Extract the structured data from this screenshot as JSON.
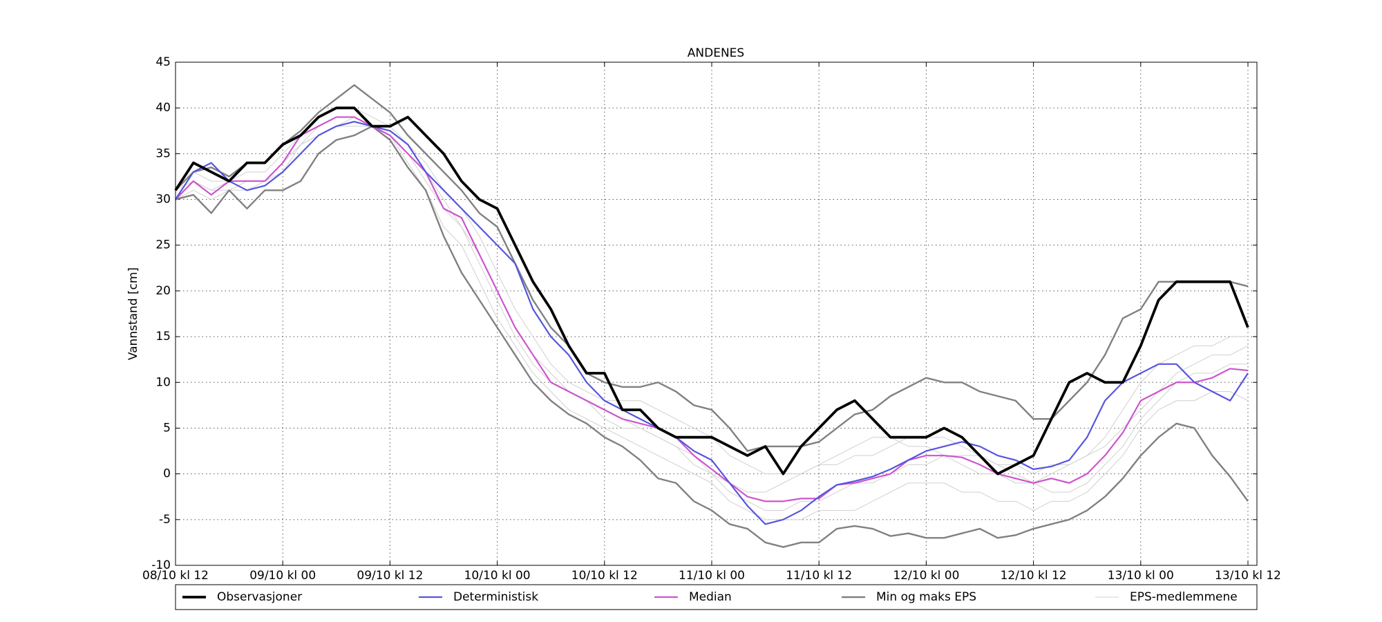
{
  "chart_data": {
    "type": "line",
    "title": "ANDENES",
    "y_label": "Vannstand [cm]",
    "categories": [
      "08/10 kl 12",
      null,
      null,
      null,
      null,
      null,
      "09/10 kl 00",
      null,
      null,
      null,
      null,
      null,
      "09/10 kl 12",
      null,
      null,
      null,
      null,
      null,
      "10/10 kl 00",
      null,
      null,
      null,
      null,
      null,
      "10/10 kl 12",
      null,
      null,
      null,
      null,
      null,
      "11/10 kl 00",
      null,
      null,
      null,
      null,
      null,
      "11/10 kl 12",
      null,
      null,
      null,
      null,
      null,
      "12/10 kl 00",
      null,
      null,
      null,
      null,
      null,
      "12/10 kl 12",
      null,
      null,
      null,
      null,
      null,
      "13/10 kl 00",
      null,
      null,
      null,
      null,
      null,
      "13/10 kl 12"
    ],
    "ylim": [
      -10,
      45
    ],
    "yticks": [
      -10,
      -5,
      0,
      5,
      10,
      15,
      20,
      25,
      30,
      35,
      40,
      45
    ],
    "grid": true,
    "series": [
      {
        "name": "Observasjoner",
        "color": "#000000",
        "values": [
          31,
          34,
          33,
          32,
          34,
          34,
          36,
          37,
          39,
          40,
          40,
          38,
          38,
          39,
          37,
          35,
          32,
          30,
          29,
          25,
          21,
          18,
          14,
          11,
          11,
          7,
          7,
          5,
          4,
          4,
          4,
          3,
          2,
          3,
          0,
          3,
          5,
          7,
          8,
          6,
          4,
          4,
          4,
          5,
          4,
          2,
          0,
          1,
          2,
          6,
          10,
          11,
          10,
          10,
          14,
          19,
          21,
          21,
          21,
          21,
          16
        ]
      },
      {
        "name": "Deterministisk",
        "color": "#5555dd",
        "values": [
          30,
          33,
          34,
          32,
          31,
          31.5,
          33,
          35,
          37,
          38,
          38.5,
          38,
          37.5,
          36,
          33,
          31,
          29,
          27,
          25,
          23,
          18,
          15,
          13,
          10,
          8,
          7,
          6,
          5,
          4,
          2.5,
          1.5,
          -1,
          -3.5,
          -5.5,
          -5,
          -4,
          -2.5,
          -1.2,
          -0.8,
          -0.3,
          0.5,
          1.5,
          2.5,
          3,
          3.5,
          3,
          2,
          1.5,
          0.5,
          0.8,
          1.5,
          4,
          8,
          10,
          11,
          12,
          12,
          10,
          9,
          8,
          11
        ]
      },
      {
        "name": "Median",
        "color": "#cc55cc",
        "values": [
          30,
          32,
          30.5,
          32,
          32,
          32,
          34,
          37,
          38,
          39,
          39,
          38,
          37,
          35,
          33,
          29,
          28,
          24,
          20,
          16,
          13,
          10,
          9,
          8,
          7,
          6,
          5.5,
          5,
          4,
          2,
          0.5,
          -1,
          -2.5,
          -3,
          -3,
          -2.7,
          -2.7,
          -1.2,
          -1,
          -0.5,
          0,
          1.5,
          2,
          2,
          1.8,
          1,
          0,
          -0.5,
          -1,
          -0.5,
          -1,
          0,
          2,
          4.5,
          8,
          9,
          10,
          10,
          10.5,
          11.5,
          11.3
        ]
      },
      {
        "name": "Min og maks EPS",
        "color": "#808080",
        "min": [
          30,
          30.5,
          28.5,
          31,
          29,
          31,
          31,
          32,
          35,
          36.5,
          37,
          38,
          36.5,
          33.5,
          31,
          26,
          22,
          19,
          16,
          13,
          10,
          8,
          6.5,
          5.5,
          4,
          3,
          1.5,
          -0.5,
          -1,
          -3,
          -4,
          -5.5,
          -6,
          -7.5,
          -8,
          -7.5,
          -7.5,
          -6,
          -5.7,
          -6,
          -6.8,
          -6.5,
          -7,
          -7,
          -6.5,
          -6,
          -7,
          -6.7,
          -6,
          -5.5,
          -5,
          -4,
          -2.5,
          -0.5,
          2,
          4,
          5.5,
          5,
          2,
          -0.3,
          -3
        ],
        "max": [
          31,
          33,
          33.5,
          32.5,
          34,
          34,
          36,
          37.5,
          39.5,
          41,
          42.5,
          41,
          39.5,
          37,
          35,
          33,
          31,
          28.5,
          27,
          23,
          19,
          16,
          14,
          11,
          10,
          9.5,
          9.5,
          10,
          9,
          7.5,
          7,
          5,
          2.5,
          3,
          3,
          3,
          3.5,
          5,
          6.5,
          7,
          8.5,
          9.5,
          10.5,
          10,
          10,
          9,
          8.5,
          8,
          6,
          6,
          8,
          10,
          13,
          17,
          18,
          21,
          21,
          21,
          21,
          21,
          20.5
        ]
      },
      {
        "name": "EPS-medlemmene",
        "color": "#d0d0d0",
        "members": [
          [
            31,
            33,
            32,
            32,
            33,
            33,
            35,
            37,
            39,
            40,
            40,
            39,
            38,
            36,
            34,
            31,
            29,
            26,
            22,
            18,
            15,
            12,
            10,
            9,
            8,
            8,
            8,
            7,
            6,
            5,
            4,
            2,
            1,
            0,
            0,
            0,
            1,
            1,
            2,
            2,
            3,
            4,
            4,
            4,
            3,
            2,
            1,
            1,
            0,
            1,
            1,
            2,
            4,
            7,
            10,
            12,
            13,
            14,
            14,
            15,
            15
          ],
          [
            30,
            31,
            30,
            31,
            31,
            32,
            33,
            36,
            37,
            38,
            38,
            38,
            37,
            34,
            31,
            27,
            25,
            21,
            17,
            14,
            11,
            9,
            7,
            6,
            5,
            4,
            3,
            2,
            1,
            0,
            -1,
            -3,
            -4,
            -5,
            -5,
            -5,
            -4,
            -4,
            -4,
            -3,
            -2,
            -1,
            -1,
            -1,
            -2,
            -2,
            -3,
            -3,
            -4,
            -3,
            -3,
            -2,
            0,
            2,
            5,
            7,
            8,
            8,
            9,
            9,
            8
          ],
          [
            30,
            32,
            31,
            32,
            32,
            32,
            34,
            36,
            38,
            39,
            39,
            38,
            37,
            35,
            32,
            29,
            27,
            23,
            19,
            15,
            12,
            10,
            9,
            8,
            6,
            5,
            5,
            4,
            3,
            1,
            0,
            -1,
            -2,
            -2,
            -1,
            0,
            1,
            2,
            3,
            4,
            4,
            3,
            3,
            2,
            1,
            0,
            0,
            -1,
            -1,
            0,
            1,
            2,
            3,
            5,
            7,
            9,
            11,
            12,
            13,
            13,
            14
          ],
          [
            31,
            32,
            31,
            31,
            32,
            32,
            34,
            36,
            37,
            38,
            39,
            38,
            37,
            35,
            33,
            30,
            27,
            24,
            20,
            16,
            13,
            11,
            9,
            8,
            7,
            6,
            5,
            4,
            3,
            2,
            0,
            -2,
            -3,
            -4,
            -4,
            -3,
            -3,
            -2,
            -1,
            -1,
            0,
            1,
            1,
            2,
            2,
            2,
            1,
            0,
            -1,
            -2,
            -2,
            -1,
            1,
            3,
            6,
            8,
            10,
            11,
            11,
            12,
            12
          ]
        ]
      }
    ]
  }
}
